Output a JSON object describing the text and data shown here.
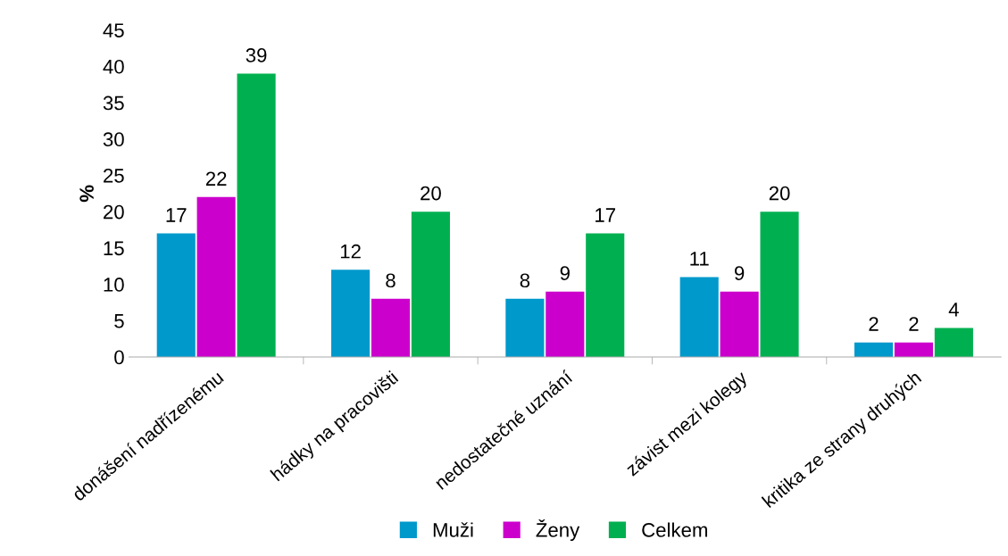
{
  "chart_data": {
    "type": "bar",
    "ylabel": "%",
    "categories": [
      "donášení nadřízenému",
      "hádky na pracovišti",
      "nedostatečné uznání",
      "závist mezi kolegy",
      "kritika ze strany druhých"
    ],
    "series": [
      {
        "name": "Muži",
        "color": "#0099cc",
        "values": [
          17,
          12,
          8,
          11,
          2
        ]
      },
      {
        "name": "Ženy",
        "color": "#cc00cc",
        "values": [
          22,
          8,
          9,
          9,
          2
        ]
      },
      {
        "name": "Celkem",
        "color": "#00b050",
        "values": [
          39,
          20,
          17,
          20,
          4
        ]
      }
    ],
    "ylim": [
      0,
      45
    ],
    "yticks": [
      0,
      5,
      10,
      15,
      20,
      25,
      30,
      35,
      40,
      45
    ],
    "data_labels": true,
    "legend": "bottom",
    "grid": false
  }
}
